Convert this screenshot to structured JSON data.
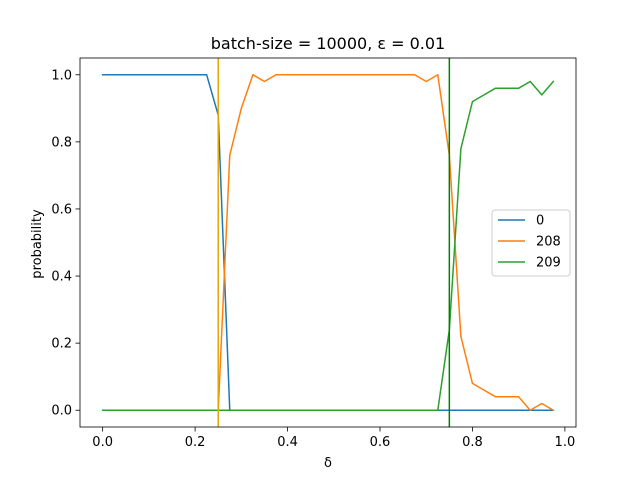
{
  "chart_data": {
    "type": "line",
    "title": "batch-size = 10000, ε = 0.01",
    "xlabel": "δ",
    "ylabel": "probability",
    "xlim": [
      -0.049,
      1.024
    ],
    "ylim": [
      -0.05,
      1.05
    ],
    "xticks": [
      0.0,
      0.2,
      0.4,
      0.6,
      0.8,
      1.0
    ],
    "xtick_labels": [
      "0.0",
      "0.2",
      "0.4",
      "0.6",
      "0.8",
      "1.0"
    ],
    "yticks": [
      0.0,
      0.2,
      0.4,
      0.6,
      0.8,
      1.0
    ],
    "ytick_labels": [
      "0.0",
      "0.2",
      "0.4",
      "0.6",
      "0.8",
      "1.0"
    ],
    "grid": false,
    "legend_position": "center-right",
    "x": [
      0.0,
      0.025,
      0.05,
      0.075,
      0.1,
      0.125,
      0.15,
      0.175,
      0.2,
      0.225,
      0.25,
      0.275,
      0.3,
      0.325,
      0.35,
      0.375,
      0.4,
      0.425,
      0.45,
      0.475,
      0.5,
      0.525,
      0.55,
      0.575,
      0.6,
      0.625,
      0.65,
      0.675,
      0.7,
      0.725,
      0.75,
      0.775,
      0.8,
      0.825,
      0.85,
      0.875,
      0.9,
      0.925,
      0.95,
      0.975
    ],
    "series": [
      {
        "name": "0",
        "color": "#1f77b4",
        "values": [
          1,
          1,
          1,
          1,
          1,
          1,
          1,
          1,
          1,
          1,
          0.88,
          0,
          0,
          0,
          0,
          0,
          0,
          0,
          0,
          0,
          0,
          0,
          0,
          0,
          0,
          0,
          0,
          0,
          0,
          0,
          0,
          0,
          0,
          0,
          0,
          0,
          0,
          0,
          0,
          0
        ]
      },
      {
        "name": "208",
        "color": "#ff7f0e",
        "values": [
          0,
          0,
          0,
          0,
          0,
          0,
          0,
          0,
          0,
          0,
          0,
          0.76,
          0.9,
          1,
          0.98,
          1,
          1,
          1,
          1,
          1,
          1,
          1,
          1,
          1,
          1,
          1,
          1,
          1,
          0.98,
          1,
          0.76,
          0.22,
          0.08,
          0.06,
          0.04,
          0.04,
          0.04,
          0,
          0.02,
          0
        ]
      },
      {
        "name": "209",
        "color": "#2ca02c",
        "values": [
          0,
          0,
          0,
          0,
          0,
          0,
          0,
          0,
          0,
          0,
          0,
          0,
          0,
          0,
          0,
          0,
          0,
          0,
          0,
          0,
          0,
          0,
          0,
          0,
          0,
          0,
          0,
          0,
          0,
          0,
          0.24,
          0.78,
          0.92,
          0.94,
          0.96,
          0.96,
          0.96,
          0.98,
          0.94,
          0.98
        ]
      }
    ],
    "vlines": [
      {
        "x": 0.25,
        "color": "#e8a400"
      },
      {
        "x": 0.75,
        "color": "#008000"
      }
    ]
  }
}
